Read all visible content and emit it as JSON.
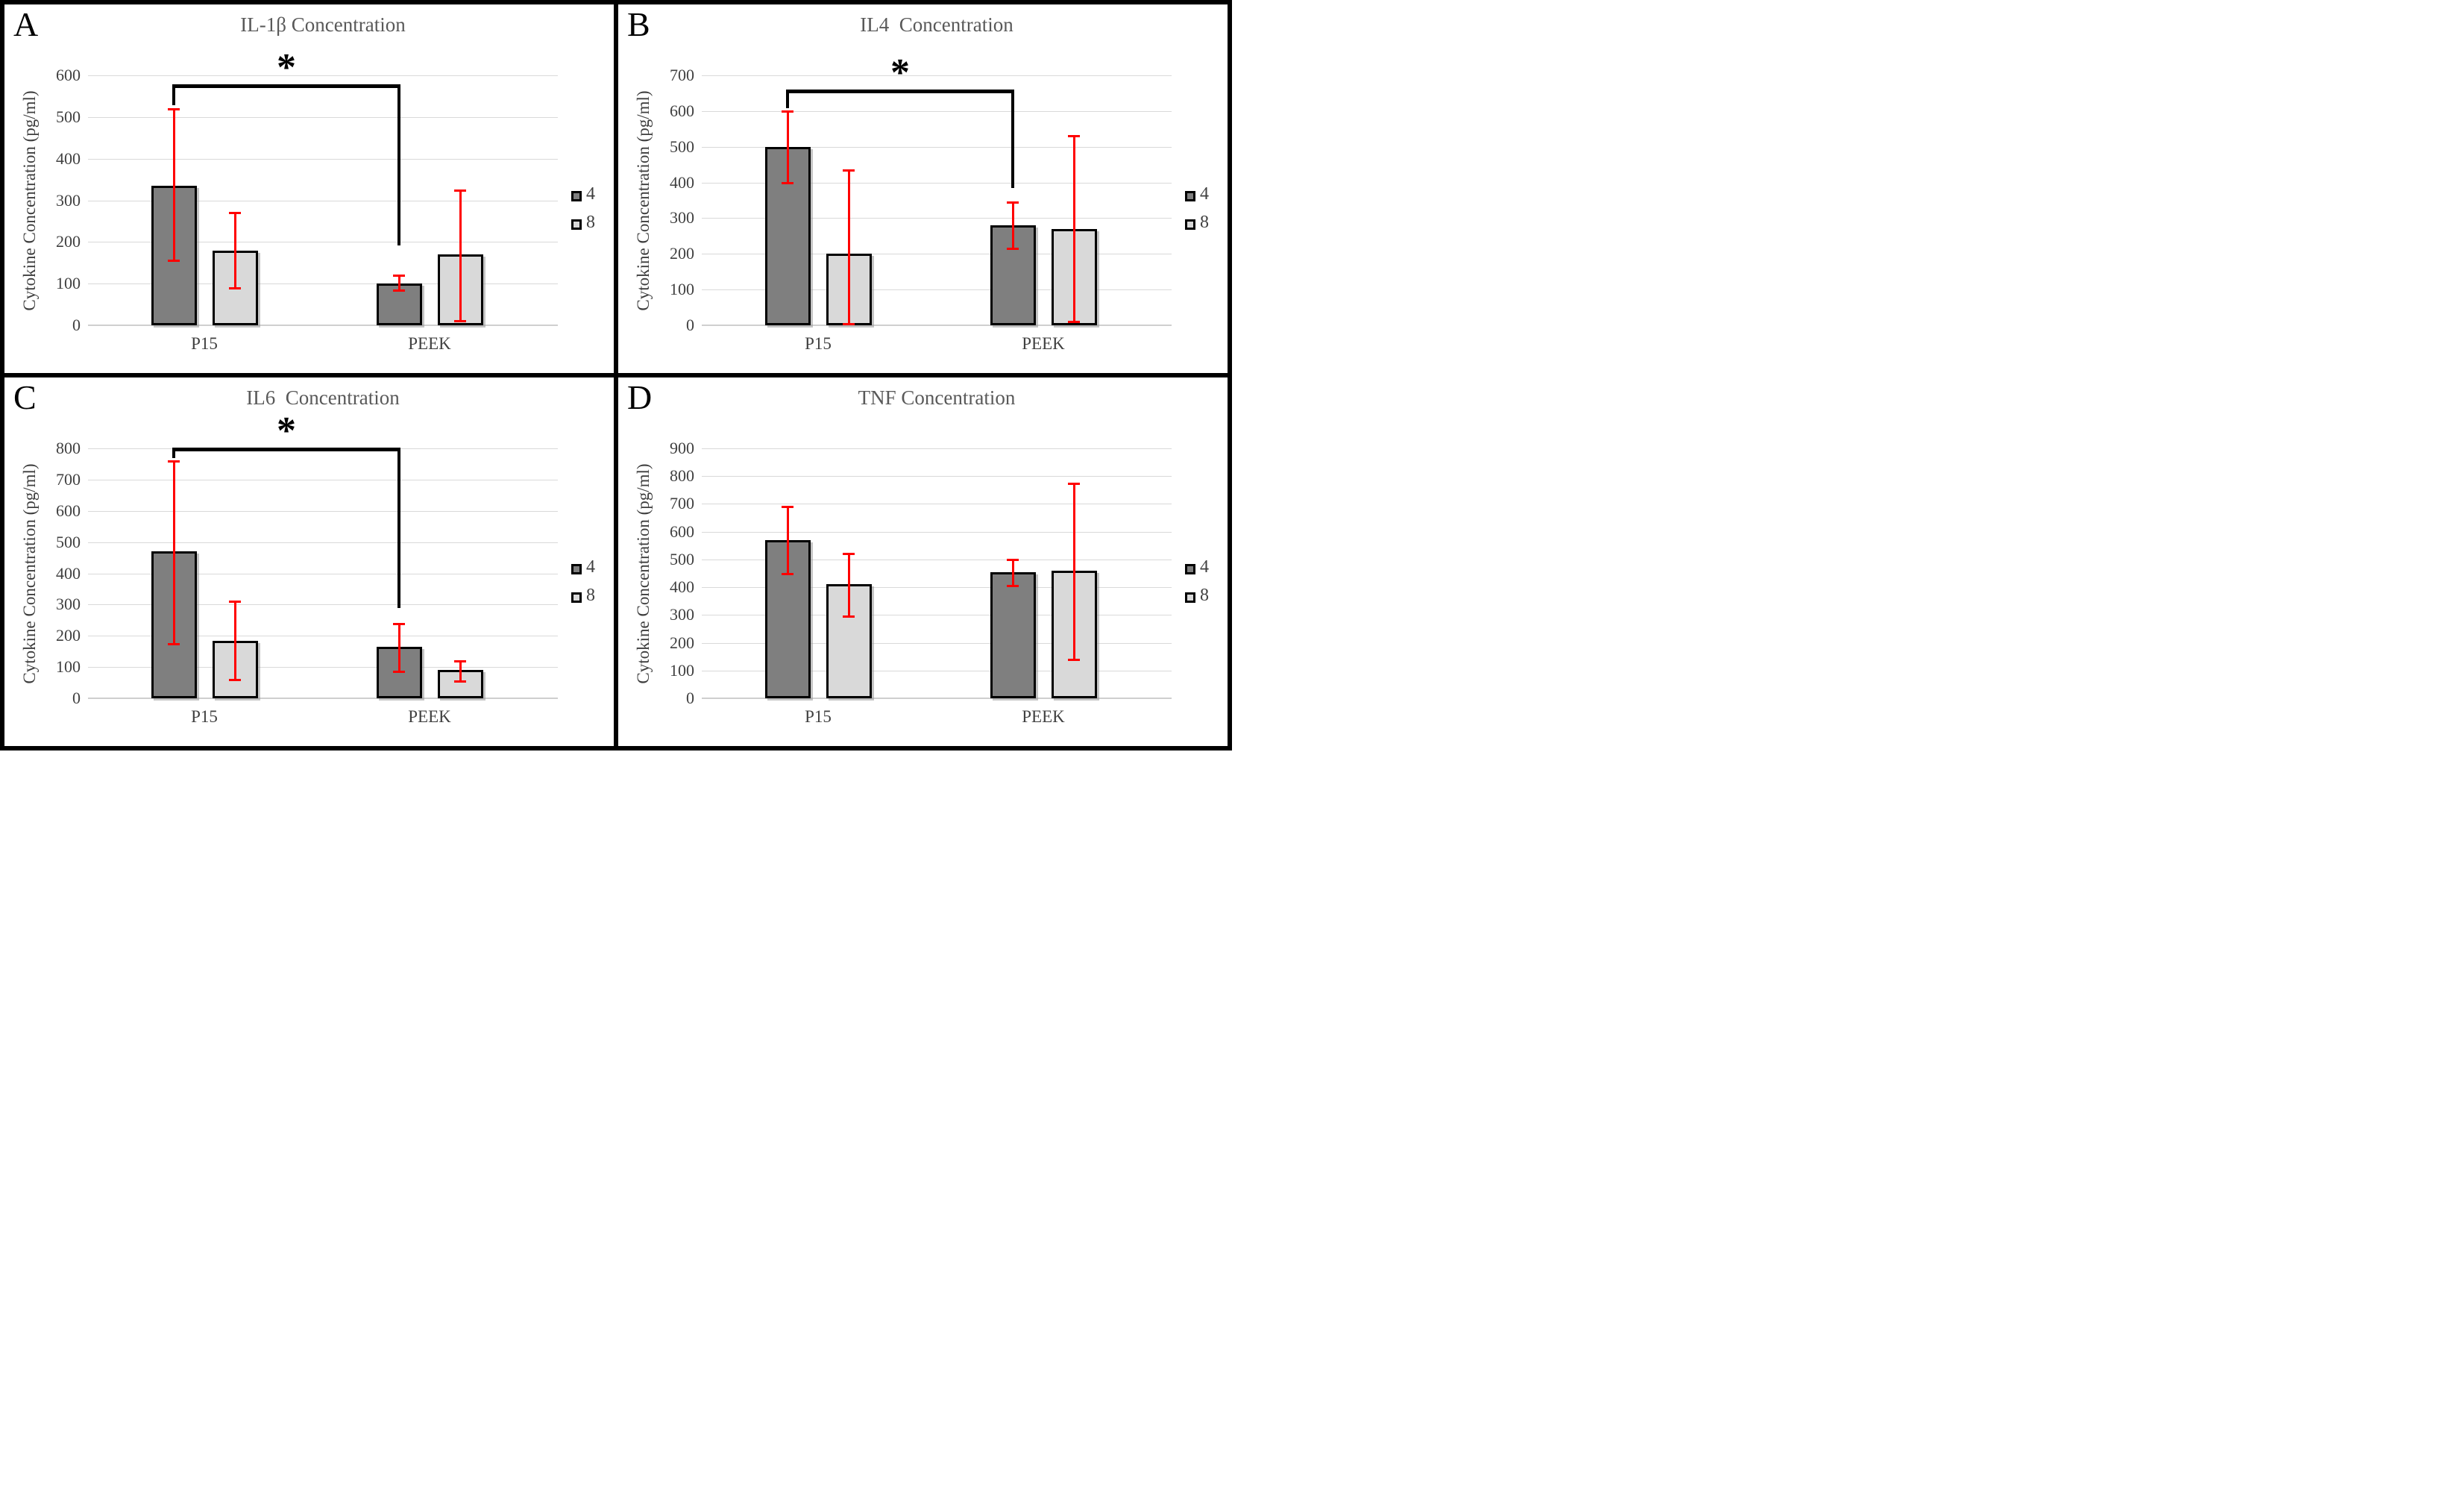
{
  "figure": {
    "y_axis_label": "Cytokine Concentration (pg/ml)",
    "categories": [
      "P15",
      "PEEK"
    ],
    "legend": [
      {
        "label": "4",
        "color": "#7f7f7f"
      },
      {
        "label": "8",
        "color": "#d9d9d9"
      }
    ],
    "colors": {
      "error_bar": "#ff0000",
      "gridline": "#d9d9d9",
      "title_text": "#595959",
      "tick_text": "#404040",
      "bar_dark": "#7f7f7f",
      "bar_light": "#d9d9d9",
      "border": "#000000"
    }
  },
  "chart_data": [
    {
      "type": "bar",
      "panel": "A",
      "title": "IL-1β Concentration",
      "ylabel": "Cytokine Concentration (pg/ml)",
      "categories": [
        "P15",
        "PEEK"
      ],
      "ylim": [
        0,
        600
      ],
      "ytick_step": 100,
      "grid": true,
      "legend_position": "right",
      "series": [
        {
          "name": "4",
          "values": [
            335,
            100
          ],
          "err_lo": [
            155,
            85
          ],
          "err_hi": [
            520,
            120
          ]
        },
        {
          "name": "8",
          "values": [
            180,
            170
          ],
          "err_lo": [
            90,
            10
          ],
          "err_hi": [
            270,
            325
          ]
        }
      ],
      "significance": {
        "label": "*",
        "from": "P15-4",
        "to": "PEEK-4",
        "bar_y": 578,
        "left_end": 528,
        "right_end": 192
      }
    },
    {
      "type": "bar",
      "panel": "B",
      "title": "IL4  Concentration",
      "ylabel": "Cytokine Concentration (pg/ml)",
      "categories": [
        "P15",
        "PEEK"
      ],
      "ylim": [
        0,
        700
      ],
      "ytick_step": 100,
      "grid": true,
      "legend_position": "right",
      "series": [
        {
          "name": "4",
          "values": [
            500,
            280
          ],
          "err_lo": [
            400,
            215
          ],
          "err_hi": [
            600,
            345
          ]
        },
        {
          "name": "8",
          "values": [
            200,
            270
          ],
          "err_lo": [
            5,
            10
          ],
          "err_hi": [
            435,
            530
          ]
        }
      ],
      "significance": {
        "label": "*",
        "from": "P15-4",
        "to": "PEEK-4",
        "bar_y": 660,
        "left_end": 608,
        "right_end": 385
      }
    },
    {
      "type": "bar",
      "panel": "C",
      "title": "IL6  Concentration",
      "ylabel": "Cytokine Concentration (pg/ml)",
      "categories": [
        "P15",
        "PEEK"
      ],
      "ylim": [
        0,
        800
      ],
      "ytick_step": 100,
      "grid": true,
      "legend_position": "right",
      "series": [
        {
          "name": "4",
          "values": [
            470,
            165
          ],
          "err_lo": [
            175,
            85
          ],
          "err_hi": [
            760,
            240
          ]
        },
        {
          "name": "8",
          "values": [
            185,
            90
          ],
          "err_lo": [
            60,
            55
          ],
          "err_hi": [
            310,
            120
          ]
        }
      ],
      "significance": {
        "label": "*",
        "from": "P15-4",
        "to": "PEEK-4",
        "bar_y": 803,
        "left_end": 768,
        "right_end": 288
      }
    },
    {
      "type": "bar",
      "panel": "D",
      "title": "TNF Concentration",
      "ylabel": "Cytokine Concentration (pg/ml)",
      "categories": [
        "P15",
        "PEEK"
      ],
      "ylim": [
        0,
        900
      ],
      "ytick_step": 100,
      "grid": true,
      "legend_position": "right",
      "series": [
        {
          "name": "4",
          "values": [
            570,
            455
          ],
          "err_lo": [
            450,
            405
          ],
          "err_hi": [
            690,
            500
          ]
        },
        {
          "name": "8",
          "values": [
            410,
            460
          ],
          "err_lo": [
            295,
            140
          ],
          "err_hi": [
            520,
            775
          ]
        }
      ],
      "significance": null
    }
  ]
}
